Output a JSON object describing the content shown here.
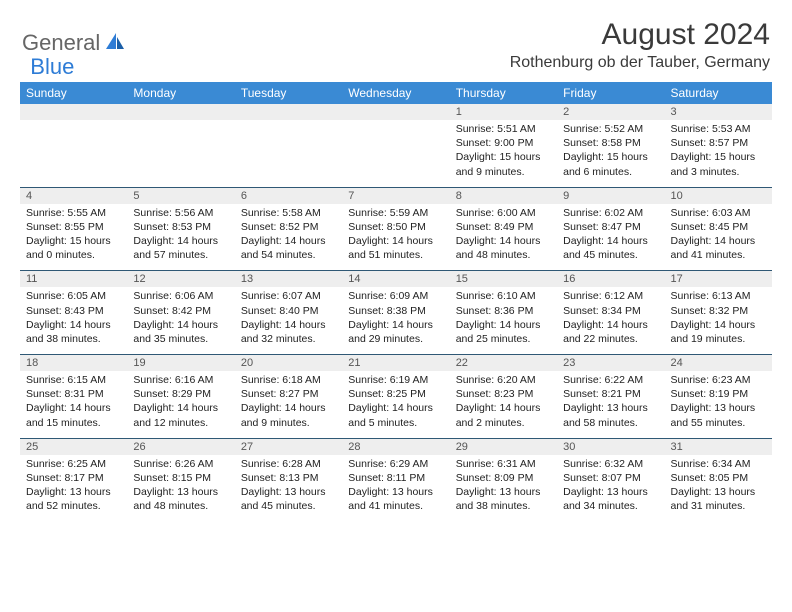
{
  "logo": {
    "general": "General",
    "blue": "Blue"
  },
  "title": "August 2024",
  "location": "Rothenburg ob der Tauber, Germany",
  "headers": [
    "Sunday",
    "Monday",
    "Tuesday",
    "Wednesday",
    "Thursday",
    "Friday",
    "Saturday"
  ],
  "colors": {
    "header_bg": "#3a8ad4",
    "header_text": "#ffffff",
    "daynum_bg": "#eeeeee",
    "border": "#2f5875",
    "title_color": "#3a3a3a",
    "logo_gray": "#666666",
    "logo_blue": "#2e7cd6"
  },
  "weeks": [
    [
      {
        "n": "",
        "sunrise": "",
        "sunset": "",
        "daylight1": "",
        "daylight2": ""
      },
      {
        "n": "",
        "sunrise": "",
        "sunset": "",
        "daylight1": "",
        "daylight2": ""
      },
      {
        "n": "",
        "sunrise": "",
        "sunset": "",
        "daylight1": "",
        "daylight2": ""
      },
      {
        "n": "",
        "sunrise": "",
        "sunset": "",
        "daylight1": "",
        "daylight2": ""
      },
      {
        "n": "1",
        "sunrise": "Sunrise: 5:51 AM",
        "sunset": "Sunset: 9:00 PM",
        "daylight1": "Daylight: 15 hours",
        "daylight2": "and 9 minutes."
      },
      {
        "n": "2",
        "sunrise": "Sunrise: 5:52 AM",
        "sunset": "Sunset: 8:58 PM",
        "daylight1": "Daylight: 15 hours",
        "daylight2": "and 6 minutes."
      },
      {
        "n": "3",
        "sunrise": "Sunrise: 5:53 AM",
        "sunset": "Sunset: 8:57 PM",
        "daylight1": "Daylight: 15 hours",
        "daylight2": "and 3 minutes."
      }
    ],
    [
      {
        "n": "4",
        "sunrise": "Sunrise: 5:55 AM",
        "sunset": "Sunset: 8:55 PM",
        "daylight1": "Daylight: 15 hours",
        "daylight2": "and 0 minutes."
      },
      {
        "n": "5",
        "sunrise": "Sunrise: 5:56 AM",
        "sunset": "Sunset: 8:53 PM",
        "daylight1": "Daylight: 14 hours",
        "daylight2": "and 57 minutes."
      },
      {
        "n": "6",
        "sunrise": "Sunrise: 5:58 AM",
        "sunset": "Sunset: 8:52 PM",
        "daylight1": "Daylight: 14 hours",
        "daylight2": "and 54 minutes."
      },
      {
        "n": "7",
        "sunrise": "Sunrise: 5:59 AM",
        "sunset": "Sunset: 8:50 PM",
        "daylight1": "Daylight: 14 hours",
        "daylight2": "and 51 minutes."
      },
      {
        "n": "8",
        "sunrise": "Sunrise: 6:00 AM",
        "sunset": "Sunset: 8:49 PM",
        "daylight1": "Daylight: 14 hours",
        "daylight2": "and 48 minutes."
      },
      {
        "n": "9",
        "sunrise": "Sunrise: 6:02 AM",
        "sunset": "Sunset: 8:47 PM",
        "daylight1": "Daylight: 14 hours",
        "daylight2": "and 45 minutes."
      },
      {
        "n": "10",
        "sunrise": "Sunrise: 6:03 AM",
        "sunset": "Sunset: 8:45 PM",
        "daylight1": "Daylight: 14 hours",
        "daylight2": "and 41 minutes."
      }
    ],
    [
      {
        "n": "11",
        "sunrise": "Sunrise: 6:05 AM",
        "sunset": "Sunset: 8:43 PM",
        "daylight1": "Daylight: 14 hours",
        "daylight2": "and 38 minutes."
      },
      {
        "n": "12",
        "sunrise": "Sunrise: 6:06 AM",
        "sunset": "Sunset: 8:42 PM",
        "daylight1": "Daylight: 14 hours",
        "daylight2": "and 35 minutes."
      },
      {
        "n": "13",
        "sunrise": "Sunrise: 6:07 AM",
        "sunset": "Sunset: 8:40 PM",
        "daylight1": "Daylight: 14 hours",
        "daylight2": "and 32 minutes."
      },
      {
        "n": "14",
        "sunrise": "Sunrise: 6:09 AM",
        "sunset": "Sunset: 8:38 PM",
        "daylight1": "Daylight: 14 hours",
        "daylight2": "and 29 minutes."
      },
      {
        "n": "15",
        "sunrise": "Sunrise: 6:10 AM",
        "sunset": "Sunset: 8:36 PM",
        "daylight1": "Daylight: 14 hours",
        "daylight2": "and 25 minutes."
      },
      {
        "n": "16",
        "sunrise": "Sunrise: 6:12 AM",
        "sunset": "Sunset: 8:34 PM",
        "daylight1": "Daylight: 14 hours",
        "daylight2": "and 22 minutes."
      },
      {
        "n": "17",
        "sunrise": "Sunrise: 6:13 AM",
        "sunset": "Sunset: 8:32 PM",
        "daylight1": "Daylight: 14 hours",
        "daylight2": "and 19 minutes."
      }
    ],
    [
      {
        "n": "18",
        "sunrise": "Sunrise: 6:15 AM",
        "sunset": "Sunset: 8:31 PM",
        "daylight1": "Daylight: 14 hours",
        "daylight2": "and 15 minutes."
      },
      {
        "n": "19",
        "sunrise": "Sunrise: 6:16 AM",
        "sunset": "Sunset: 8:29 PM",
        "daylight1": "Daylight: 14 hours",
        "daylight2": "and 12 minutes."
      },
      {
        "n": "20",
        "sunrise": "Sunrise: 6:18 AM",
        "sunset": "Sunset: 8:27 PM",
        "daylight1": "Daylight: 14 hours",
        "daylight2": "and 9 minutes."
      },
      {
        "n": "21",
        "sunrise": "Sunrise: 6:19 AM",
        "sunset": "Sunset: 8:25 PM",
        "daylight1": "Daylight: 14 hours",
        "daylight2": "and 5 minutes."
      },
      {
        "n": "22",
        "sunrise": "Sunrise: 6:20 AM",
        "sunset": "Sunset: 8:23 PM",
        "daylight1": "Daylight: 14 hours",
        "daylight2": "and 2 minutes."
      },
      {
        "n": "23",
        "sunrise": "Sunrise: 6:22 AM",
        "sunset": "Sunset: 8:21 PM",
        "daylight1": "Daylight: 13 hours",
        "daylight2": "and 58 minutes."
      },
      {
        "n": "24",
        "sunrise": "Sunrise: 6:23 AM",
        "sunset": "Sunset: 8:19 PM",
        "daylight1": "Daylight: 13 hours",
        "daylight2": "and 55 minutes."
      }
    ],
    [
      {
        "n": "25",
        "sunrise": "Sunrise: 6:25 AM",
        "sunset": "Sunset: 8:17 PM",
        "daylight1": "Daylight: 13 hours",
        "daylight2": "and 52 minutes."
      },
      {
        "n": "26",
        "sunrise": "Sunrise: 6:26 AM",
        "sunset": "Sunset: 8:15 PM",
        "daylight1": "Daylight: 13 hours",
        "daylight2": "and 48 minutes."
      },
      {
        "n": "27",
        "sunrise": "Sunrise: 6:28 AM",
        "sunset": "Sunset: 8:13 PM",
        "daylight1": "Daylight: 13 hours",
        "daylight2": "and 45 minutes."
      },
      {
        "n": "28",
        "sunrise": "Sunrise: 6:29 AM",
        "sunset": "Sunset: 8:11 PM",
        "daylight1": "Daylight: 13 hours",
        "daylight2": "and 41 minutes."
      },
      {
        "n": "29",
        "sunrise": "Sunrise: 6:31 AM",
        "sunset": "Sunset: 8:09 PM",
        "daylight1": "Daylight: 13 hours",
        "daylight2": "and 38 minutes."
      },
      {
        "n": "30",
        "sunrise": "Sunrise: 6:32 AM",
        "sunset": "Sunset: 8:07 PM",
        "daylight1": "Daylight: 13 hours",
        "daylight2": "and 34 minutes."
      },
      {
        "n": "31",
        "sunrise": "Sunrise: 6:34 AM",
        "sunset": "Sunset: 8:05 PM",
        "daylight1": "Daylight: 13 hours",
        "daylight2": "and 31 minutes."
      }
    ]
  ]
}
